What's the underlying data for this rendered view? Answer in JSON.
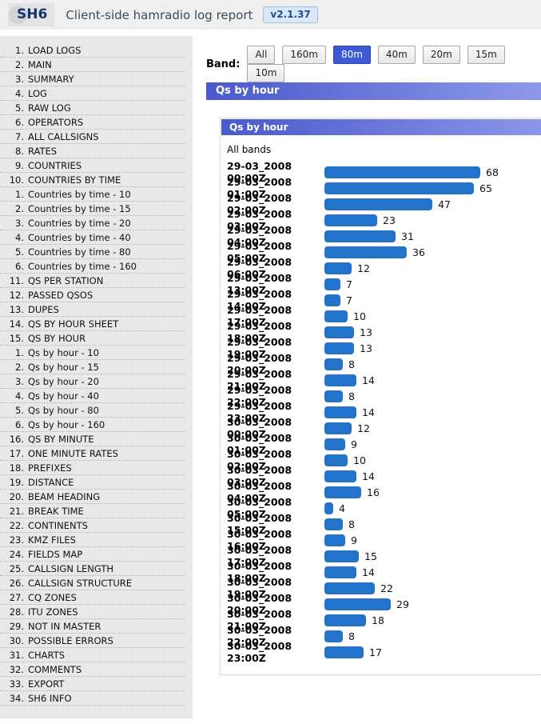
{
  "header": {
    "logo": "SH6",
    "title": "Client-side hamradio log report",
    "version": "v2.1.37"
  },
  "sidebar": {
    "items": [
      {
        "num": "1.",
        "label": "LOAD LOGS"
      },
      {
        "num": "2.",
        "label": "MAIN"
      },
      {
        "num": "3.",
        "label": "SUMMARY"
      },
      {
        "num": "4.",
        "label": "LOG"
      },
      {
        "num": "5.",
        "label": "RAW LOG"
      },
      {
        "num": "6.",
        "label": "OPERATORS"
      },
      {
        "num": "7.",
        "label": "ALL CALLSIGNS"
      },
      {
        "num": "8.",
        "label": "RATES"
      },
      {
        "num": "9.",
        "label": "COUNTRIES"
      },
      {
        "num": "10.",
        "label": "COUNTRIES BY TIME",
        "children": [
          {
            "num": "1.",
            "label": "Countries by time - 10"
          },
          {
            "num": "2.",
            "label": "Countries by time - 15"
          },
          {
            "num": "3.",
            "label": "Countries by time - 20"
          },
          {
            "num": "4.",
            "label": "Countries by time - 40"
          },
          {
            "num": "5.",
            "label": "Countries by time - 80"
          },
          {
            "num": "6.",
            "label": "Countries by time - 160"
          }
        ]
      },
      {
        "num": "11.",
        "label": "QS PER STATION"
      },
      {
        "num": "12.",
        "label": "PASSED QSOS"
      },
      {
        "num": "13.",
        "label": "DUPES"
      },
      {
        "num": "14.",
        "label": "QS BY HOUR SHEET"
      },
      {
        "num": "15.",
        "label": "QS BY HOUR",
        "children": [
          {
            "num": "1.",
            "label": "Qs by hour - 10"
          },
          {
            "num": "2.",
            "label": "Qs by hour - 15"
          },
          {
            "num": "3.",
            "label": "Qs by hour - 20"
          },
          {
            "num": "4.",
            "label": "Qs by hour - 40"
          },
          {
            "num": "5.",
            "label": "Qs by hour - 80"
          },
          {
            "num": "6.",
            "label": "Qs by hour - 160"
          }
        ]
      },
      {
        "num": "16.",
        "label": "QS BY MINUTE"
      },
      {
        "num": "17.",
        "label": "ONE MINUTE RATES"
      },
      {
        "num": "18.",
        "label": "PREFIXES"
      },
      {
        "num": "19.",
        "label": "DISTANCE"
      },
      {
        "num": "20.",
        "label": "BEAM HEADING"
      },
      {
        "num": "21.",
        "label": "BREAK TIME"
      },
      {
        "num": "22.",
        "label": "CONTINENTS"
      },
      {
        "num": "23.",
        "label": "KMZ FILES"
      },
      {
        "num": "24.",
        "label": "FIELDS MAP"
      },
      {
        "num": "25.",
        "label": "CALLSIGN LENGTH"
      },
      {
        "num": "26.",
        "label": "CALLSIGN STRUCTURE"
      },
      {
        "num": "27.",
        "label": "CQ ZONES"
      },
      {
        "num": "28.",
        "label": "ITU ZONES"
      },
      {
        "num": "29.",
        "label": "NOT IN MASTER"
      },
      {
        "num": "30.",
        "label": "POSSIBLE ERRORS"
      },
      {
        "num": "31.",
        "label": "CHARTS"
      },
      {
        "num": "32.",
        "label": "COMMENTS"
      },
      {
        "num": "33.",
        "label": "EXPORT"
      },
      {
        "num": "34.",
        "label": "SH6 INFO"
      }
    ]
  },
  "band_selector": {
    "label": "Band:",
    "options": [
      "All",
      "160m",
      "80m",
      "40m",
      "20m",
      "15m",
      "10m"
    ],
    "selected": "80m"
  },
  "section_title": "Qs by hour",
  "panel": {
    "title": "Qs by hour",
    "subtitle": "All bands"
  },
  "chart_data": {
    "type": "bar",
    "orientation": "horizontal",
    "title": "Qs by hour",
    "subtitle": "All bands",
    "bar_color": "#2273c9",
    "value_labels": true,
    "categories": [
      "29-03_2008 00:00Z",
      "29-03_2008 01:00Z",
      "29-03_2008 02:00Z",
      "29-03_2008 03:00Z",
      "29-03_2008 04:00Z",
      "29-03_2008 05:00Z",
      "29-03_2008 06:00Z",
      "29-03_2008 13:00Z",
      "29-03_2008 14:00Z",
      "29-03_2008 17:00Z",
      "29-03_2008 18:00Z",
      "29-03_2008 19:00Z",
      "29-03_2008 20:00Z",
      "29-03_2008 21:00Z",
      "29-03_2008 22:00Z",
      "29-03_2008 23:00Z",
      "30-03_2008 00:00Z",
      "30-03_2008 01:00Z",
      "30-03_2008 02:00Z",
      "30-03_2008 03:00Z",
      "30-03_2008 04:00Z",
      "30-03_2008 05:00Z",
      "30-03_2008 15:00Z",
      "30-03_2008 16:00Z",
      "30-03_2008 17:00Z",
      "30-03_2008 18:00Z",
      "30-03_2008 19:00Z",
      "30-03_2008 20:00Z",
      "30-03_2008 21:00Z",
      "30-03_2008 22:00Z",
      "30-03_2008 23:00Z"
    ],
    "values": [
      68,
      65,
      47,
      23,
      31,
      36,
      12,
      7,
      7,
      10,
      13,
      13,
      8,
      14,
      8,
      14,
      12,
      9,
      10,
      14,
      16,
      4,
      8,
      9,
      15,
      14,
      22,
      29,
      18,
      8,
      17
    ]
  },
  "colors": {
    "accent_blue": "#3d5ad6",
    "bar_blue": "#2273c9",
    "header_gradient_left": "#4a59cc",
    "header_gradient_right": "#8e98e9",
    "sidebar_bg": "#e8e8e8",
    "topbar_bg": "#efefef"
  }
}
